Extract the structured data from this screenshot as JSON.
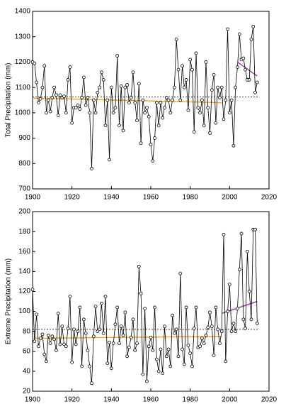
{
  "chart_data": [
    {
      "type": "line",
      "ylabel": "Total Precipitation (mm)",
      "x": [
        1900,
        1901,
        1902,
        1903,
        1904,
        1905,
        1906,
        1907,
        1908,
        1909,
        1910,
        1911,
        1912,
        1913,
        1914,
        1915,
        1916,
        1917,
        1918,
        1919,
        1920,
        1921,
        1922,
        1923,
        1924,
        1925,
        1926,
        1927,
        1928,
        1929,
        1930,
        1931,
        1932,
        1933,
        1934,
        1935,
        1936,
        1937,
        1938,
        1939,
        1940,
        1941,
        1942,
        1943,
        1944,
        1945,
        1946,
        1947,
        1948,
        1949,
        1950,
        1951,
        1952,
        1953,
        1954,
        1955,
        1956,
        1957,
        1958,
        1959,
        1960,
        1961,
        1962,
        1963,
        1964,
        1965,
        1966,
        1967,
        1968,
        1969,
        1970,
        1971,
        1972,
        1973,
        1974,
        1975,
        1976,
        1977,
        1978,
        1979,
        1980,
        1981,
        1982,
        1983,
        1984,
        1985,
        1986,
        1987,
        1988,
        1989,
        1990,
        1991,
        1992,
        1993,
        1994,
        1995,
        1996,
        1997,
        1998,
        1999,
        2000,
        2001,
        2002,
        2003,
        2004,
        2005,
        2006,
        2007,
        2008,
        2009,
        2010,
        2011,
        2012,
        2013,
        2014
      ],
      "values": [
        1200,
        1195,
        1120,
        1040,
        1055,
        1100,
        1185,
        1000,
        1050,
        1005,
        1060,
        1100,
        1070,
        990,
        1070,
        1060,
        1065,
        1000,
        1130,
        1180,
        960,
        1020,
        1020,
        1030,
        1015,
        1060,
        1140,
        1030,
        1060,
        1000,
        780,
        1050,
        1000,
        1080,
        1100,
        1160,
        1130,
        950,
        1050,
        815,
        1100,
        1000,
        1020,
        1225,
        950,
        1105,
        930,
        1100,
        1110,
        1040,
        1060,
        1160,
        1040,
        970,
        1115,
        880,
        1050,
        1000,
        1020,
        985,
        875,
        810,
        900,
        1040,
        950,
        1040,
        980,
        1020,
        1060,
        1050,
        1000,
        1050,
        1100,
        1290,
        1170,
        1050,
        1185,
        1100,
        1130,
        1010,
        1210,
        1170,
        925,
        1235,
        1020,
        1000,
        1050,
        950,
        1200,
        1020,
        920,
        1090,
        1150,
        960,
        1100,
        1060,
        1100,
        975,
        1050,
        1330,
        1000,
        1050,
        870,
        1100,
        1180,
        1310,
        1210,
        1215,
        1170,
        1130,
        1130,
        1290,
        1340,
        1080,
        1120
      ],
      "color": "#000000",
      "trend_lines": [
        {
          "x": [
            1900,
            2015
          ],
          "values": [
            1063,
            1063
          ],
          "color": "#000000",
          "dashed": true
        },
        {
          "x": [
            1900,
            1996
          ],
          "values": [
            1058,
            1040
          ],
          "color": "#f5a623",
          "dashed": false
        },
        {
          "x": [
            2004,
            2014
          ],
          "values": [
            1200,
            1145
          ],
          "color": "#a03cb4",
          "dashed": false
        }
      ],
      "xlim": [
        1900,
        2020
      ],
      "xticks": [
        1900,
        1920,
        1940,
        1960,
        1980,
        2000,
        2020
      ],
      "ylim": [
        700,
        1400
      ],
      "yticks": [
        700,
        800,
        900,
        1000,
        1100,
        1200,
        1300,
        1400
      ]
    },
    {
      "type": "line",
      "ylabel": "Extreme Precipitation (mm)",
      "x": [
        1900,
        1901,
        1902,
        1903,
        1904,
        1905,
        1906,
        1907,
        1908,
        1909,
        1910,
        1911,
        1912,
        1913,
        1914,
        1915,
        1916,
        1917,
        1918,
        1919,
        1920,
        1921,
        1922,
        1923,
        1924,
        1925,
        1926,
        1927,
        1928,
        1929,
        1930,
        1931,
        1932,
        1933,
        1934,
        1935,
        1936,
        1937,
        1938,
        1939,
        1940,
        1941,
        1942,
        1943,
        1944,
        1945,
        1946,
        1947,
        1948,
        1949,
        1950,
        1951,
        1952,
        1953,
        1954,
        1955,
        1956,
        1957,
        1958,
        1959,
        1960,
        1961,
        1962,
        1963,
        1964,
        1965,
        1966,
        1967,
        1968,
        1969,
        1970,
        1971,
        1972,
        1973,
        1974,
        1975,
        1976,
        1977,
        1978,
        1979,
        1980,
        1981,
        1982,
        1983,
        1984,
        1985,
        1986,
        1987,
        1988,
        1989,
        1990,
        1991,
        1992,
        1993,
        1994,
        1995,
        1996,
        1997,
        1998,
        1999,
        2000,
        2001,
        2002,
        2003,
        2004,
        2005,
        2006,
        2007,
        2008,
        2009,
        2010,
        2011,
        2012,
        2013,
        2014
      ],
      "values": [
        122,
        70,
        97,
        65,
        73,
        77,
        57,
        50,
        76,
        68,
        75,
        72,
        61,
        98,
        67,
        85,
        67,
        65,
        83,
        115,
        49,
        82,
        67,
        80,
        104,
        45,
        92,
        78,
        61,
        45,
        28,
        75,
        105,
        80,
        82,
        108,
        78,
        115,
        48,
        69,
        43,
        68,
        87,
        104,
        68,
        85,
        76,
        99,
        55,
        64,
        74,
        92,
        61,
        68,
        145,
        118,
        37,
        103,
        30,
        65,
        74,
        61,
        104,
        52,
        40,
        62,
        38,
        85,
        55,
        62,
        45,
        96,
        78,
        82,
        55,
        138,
        62,
        47,
        104,
        66,
        58,
        45,
        83,
        104,
        64,
        65,
        73,
        68,
        76,
        84,
        99,
        85,
        56,
        104,
        82,
        68,
        80,
        177,
        50,
        100,
        127,
        80,
        88,
        80,
        103,
        142,
        178,
        92,
        83,
        160,
        120,
        92,
        182,
        182,
        88
      ],
      "color": "#000000",
      "trend_lines": [
        {
          "x": [
            1900,
            2015
          ],
          "values": [
            82,
            82
          ],
          "color": "#000000",
          "dashed": true
        },
        {
          "x": [
            1900,
            1996
          ],
          "values": [
            73,
            75
          ],
          "color": "#f5a623",
          "dashed": false
        },
        {
          "x": [
            1996,
            2014
          ],
          "values": [
            98,
            110
          ],
          "color": "#a03cb4",
          "dashed": false
        }
      ],
      "xlim": [
        1900,
        2020
      ],
      "xticks": [
        1900,
        1920,
        1940,
        1960,
        1980,
        2000,
        2020
      ],
      "ylim": [
        20,
        200
      ],
      "yticks": [
        20,
        40,
        60,
        80,
        100,
        120,
        140,
        160,
        180,
        200
      ]
    }
  ]
}
